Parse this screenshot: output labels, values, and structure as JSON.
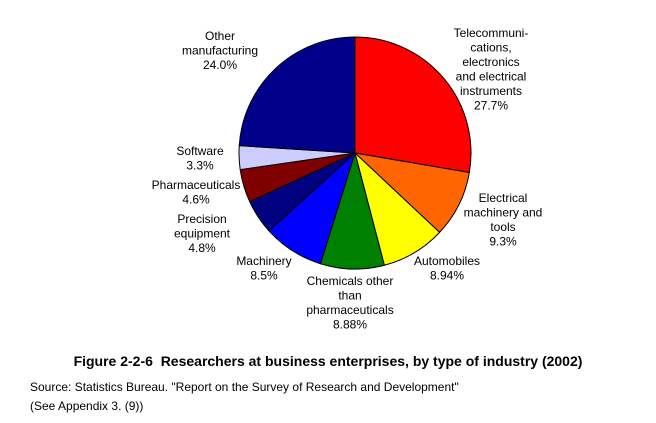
{
  "chart_data": {
    "type": "pie",
    "start_angle_deg": 0,
    "direction": "clockwise",
    "slices": [
      {
        "name": "Telecommunications, electronics and electrical instruments",
        "value": 27.7,
        "color": "#FF0000",
        "label_lines": [
          "Telecommuni-",
          "cations,",
          "electronics",
          "and electrical",
          "instruments",
          "27.7%"
        ]
      },
      {
        "name": "Electrical machinery and tools",
        "value": 9.3,
        "color": "#FF6600",
        "label_lines": [
          "Electrical",
          "machinery and",
          "tools",
          "9.3%"
        ]
      },
      {
        "name": "Automobiles",
        "value": 8.94,
        "color": "#FFFF00",
        "label_lines": [
          "Automobiles",
          "8.94%"
        ]
      },
      {
        "name": "Chemicals other than pharmaceuticals",
        "value": 8.88,
        "color": "#008000",
        "label_lines": [
          "Chemicals other",
          "than",
          "pharmaceuticals",
          "8.88%"
        ]
      },
      {
        "name": "Machinery",
        "value": 8.5,
        "color": "#0000FF",
        "label_lines": [
          "Machinery",
          "8.5%"
        ]
      },
      {
        "name": "Precision equipment",
        "value": 4.8,
        "color": "#000080",
        "label_lines": [
          "Precision",
          "equipment",
          "4.8%"
        ]
      },
      {
        "name": "Pharmaceuticals",
        "value": 4.6,
        "color": "#800000",
        "label_lines": [
          "Pharmaceuticals",
          "4.6%"
        ]
      },
      {
        "name": "Software",
        "value": 3.3,
        "color": "#CCCCFF",
        "label_lines": [
          "Software",
          "3.3%"
        ]
      },
      {
        "name": "Other manufacturing",
        "value": 24.0,
        "color": "#00008B",
        "label_lines": [
          "Other",
          "manufacturing",
          "24.0%"
        ]
      }
    ]
  },
  "figure_title": "Figure 2-2-6  Researchers at business enterprises, by type of industry (2002)",
  "source_line_1": "Source: Statistics Bureau. \"Report on the Survey of Research and Development\"",
  "source_line_2": "(See Appendix 3. (9))"
}
